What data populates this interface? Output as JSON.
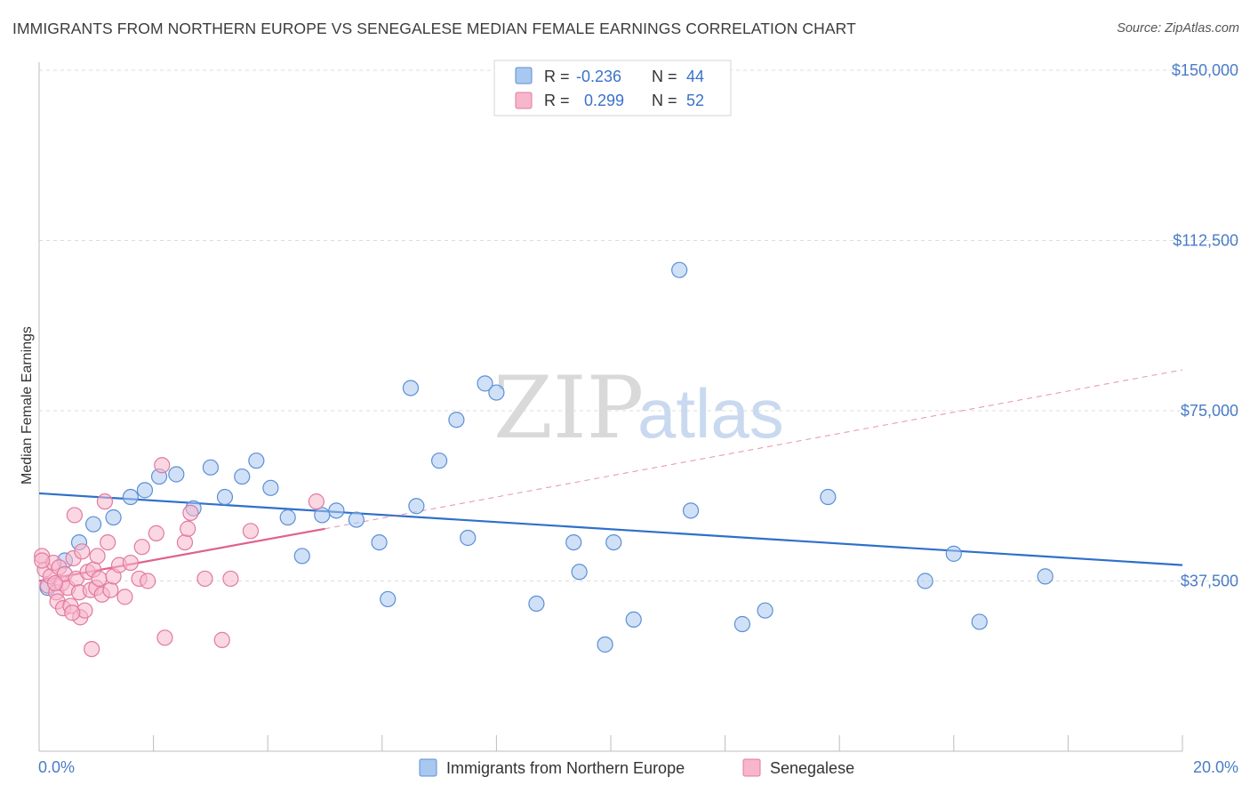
{
  "header": {
    "title": "IMMIGRANTS FROM NORTHERN EUROPE VS SENEGALESE MEDIAN FEMALE EARNINGS CORRELATION CHART",
    "source": "Source: ZipAtlas.com"
  },
  "legend": {
    "rows": [
      {
        "r_label": "R =",
        "r_value": "-0.236",
        "n_label": "N =",
        "n_value": "44",
        "color": "#a9c8f0"
      },
      {
        "r_label": "R =",
        "r_value": "0.299",
        "n_label": "N =",
        "n_value": "52",
        "color": "#f7b6cb"
      }
    ]
  },
  "watermark": {
    "zip": "ZIP",
    "atlas": "atlas"
  },
  "chart_data": {
    "type": "scatter",
    "ylabel": "Median Female Earnings",
    "xlim": [
      0,
      20
    ],
    "ylim": [
      0,
      160000
    ],
    "yticks": [
      37500,
      75000,
      112500,
      150000
    ],
    "ytick_labels": [
      "$37,500",
      "$75,000",
      "$112,500",
      "$150,000"
    ],
    "x_start_label": "0.0%",
    "x_end_label": "20.0%",
    "series": [
      {
        "name": "Immigrants from Northern Europe",
        "color": "#a9c8f0",
        "stroke": "#5b8fd6",
        "trend_color": "#2f6fcb",
        "trend": {
          "x0": 0,
          "y0": 56800,
          "x1": 20,
          "y1": 41000,
          "dashed_to": null
        },
        "points": [
          [
            0.15,
            36000
          ],
          [
            0.45,
            42000
          ],
          [
            0.7,
            46000
          ],
          [
            0.95,
            50000
          ],
          [
            1.3,
            51500
          ],
          [
            1.6,
            56000
          ],
          [
            1.85,
            57500
          ],
          [
            2.1,
            60500
          ],
          [
            2.4,
            61000
          ],
          [
            2.7,
            53500
          ],
          [
            3.0,
            62500
          ],
          [
            3.25,
            56000
          ],
          [
            3.55,
            60500
          ],
          [
            3.8,
            64000
          ],
          [
            4.05,
            58000
          ],
          [
            4.35,
            51500
          ],
          [
            4.6,
            43000
          ],
          [
            4.95,
            52000
          ],
          [
            5.2,
            53000
          ],
          [
            5.55,
            51000
          ],
          [
            5.95,
            46000
          ],
          [
            6.1,
            33500
          ],
          [
            6.5,
            80000
          ],
          [
            6.6,
            54000
          ],
          [
            7.0,
            64000
          ],
          [
            7.3,
            73000
          ],
          [
            7.5,
            47000
          ],
          [
            7.8,
            81000
          ],
          [
            8.0,
            79000
          ],
          [
            8.7,
            32500
          ],
          [
            9.35,
            46000
          ],
          [
            9.45,
            39500
          ],
          [
            9.9,
            23500
          ],
          [
            10.05,
            46000
          ],
          [
            10.4,
            29000
          ],
          [
            11.2,
            106000
          ],
          [
            11.4,
            53000
          ],
          [
            12.3,
            28000
          ],
          [
            12.7,
            31000
          ],
          [
            13.8,
            56000
          ],
          [
            15.5,
            37500
          ],
          [
            16.0,
            43500
          ],
          [
            16.45,
            28500
          ],
          [
            17.6,
            38500
          ]
        ]
      },
      {
        "name": "Senegalese",
        "color": "#f7b6cb",
        "stroke": "#e07aa0",
        "trend_color": "#e0608f",
        "trend": {
          "x0": 0,
          "y0": 37500,
          "x1": 5.0,
          "y1": 49000,
          "dashed_to": {
            "x": 20,
            "y": 84000
          }
        },
        "points": [
          [
            0.05,
            43000
          ],
          [
            0.1,
            40000
          ],
          [
            0.15,
            36500
          ],
          [
            0.2,
            38500
          ],
          [
            0.25,
            41500
          ],
          [
            0.3,
            35000
          ],
          [
            0.32,
            33000
          ],
          [
            0.35,
            40500
          ],
          [
            0.4,
            37000
          ],
          [
            0.42,
            31500
          ],
          [
            0.45,
            39000
          ],
          [
            0.5,
            36000
          ],
          [
            0.55,
            32000
          ],
          [
            0.6,
            42500
          ],
          [
            0.62,
            52000
          ],
          [
            0.65,
            38000
          ],
          [
            0.7,
            35000
          ],
          [
            0.72,
            29500
          ],
          [
            0.75,
            44000
          ],
          [
            0.8,
            31000
          ],
          [
            0.85,
            39500
          ],
          [
            0.9,
            35500
          ],
          [
            0.92,
            22500
          ],
          [
            0.95,
            40000
          ],
          [
            1.0,
            36000
          ],
          [
            1.05,
            38000
          ],
          [
            1.1,
            34500
          ],
          [
            1.15,
            55000
          ],
          [
            1.2,
            46000
          ],
          [
            1.25,
            35500
          ],
          [
            1.3,
            38500
          ],
          [
            1.4,
            41000
          ],
          [
            1.5,
            34000
          ],
          [
            1.6,
            41500
          ],
          [
            1.75,
            38000
          ],
          [
            1.8,
            45000
          ],
          [
            1.9,
            37500
          ],
          [
            2.05,
            48000
          ],
          [
            2.15,
            63000
          ],
          [
            2.2,
            25000
          ],
          [
            2.55,
            46000
          ],
          [
            2.6,
            49000
          ],
          [
            2.65,
            52500
          ],
          [
            2.9,
            38000
          ],
          [
            3.2,
            24500
          ],
          [
            3.35,
            38000
          ],
          [
            3.7,
            48500
          ],
          [
            4.85,
            55000
          ],
          [
            0.05,
            42000
          ],
          [
            0.28,
            37000
          ],
          [
            0.58,
            30500
          ],
          [
            1.02,
            43000
          ]
        ]
      }
    ]
  }
}
